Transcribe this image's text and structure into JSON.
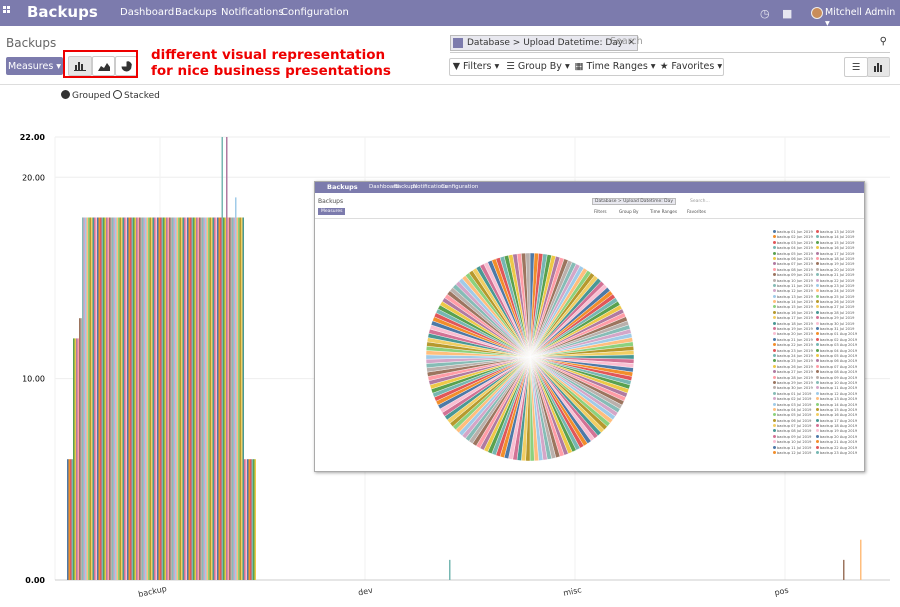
{
  "app": {
    "name": "Backups",
    "menu": [
      "Dashboard",
      "Backups",
      "Notifications",
      "Configuration"
    ],
    "user": "Mitchell Admin"
  },
  "control_panel": {
    "breadcrumb": "Backups",
    "measures_label": "Measures",
    "chart_types": [
      "bar-chart-icon",
      "area-chart-icon",
      "pie-chart-icon"
    ],
    "search": {
      "facet": "Database > Upload Datetime: Day",
      "placeholder": "Search"
    },
    "filters": [
      "Filters",
      "Group By",
      "Time Ranges",
      "Favorites"
    ],
    "views": [
      "list-view-icon",
      "graph-view-icon"
    ]
  },
  "annotation": {
    "line1": "different visual representation",
    "line2": "for nice business presentations",
    "color": "#e00000"
  },
  "graph_mode": {
    "grouped_label": "Grouped",
    "stacked_label": "Stacked",
    "selected": "Grouped"
  },
  "chart_data": {
    "type": "bar",
    "categories": [
      "backup",
      "dev",
      "misc",
      "pos"
    ],
    "ylim": [
      0,
      22
    ],
    "yticks": [
      "0.00",
      "10.00",
      "20.00",
      "22.00"
    ],
    "grid": true,
    "series_note": "many daily series per category",
    "approx_values": {
      "backup": {
        "outer_low": 6,
        "mid": 12,
        "plateau": 18,
        "peak": 22,
        "spike": 19
      },
      "dev": {
        "max": 0
      },
      "misc": {
        "max": 1
      },
      "pos": {
        "max": 2
      }
    }
  },
  "inset": {
    "title": "Backups",
    "menu": [
      "Dashboard",
      "Backups",
      "Notifications",
      "Configuration"
    ],
    "breadcrumb": "Backups",
    "measures_label": "Measures",
    "facet": "Database > Upload Datetime: Day",
    "placeholder": "Search...",
    "filters": [
      "Filters",
      "Group By",
      "Time Ranges",
      "Favorites"
    ],
    "chart_type": "pie",
    "legend": [
      "backup 01 Jun 2019",
      "backup 02 Jun 2019",
      "backup 03 Jun 2019",
      "backup 04 Jun 2019",
      "backup 05 Jun 2019",
      "backup 06 Jun 2019",
      "backup 07 Jun 2019",
      "backup 08 Jun 2019",
      "backup 09 Jun 2019",
      "backup 10 Jun 2019",
      "backup 11 Jun 2019",
      "backup 12 Jun 2019",
      "backup 13 Jun 2019",
      "backup 14 Jun 2019",
      "backup 15 Jun 2019",
      "backup 16 Jun 2019",
      "backup 17 Jun 2019",
      "backup 18 Jun 2019",
      "backup 19 Jun 2019",
      "backup 20 Jun 2019",
      "backup 21 Jun 2019",
      "backup 22 Jun 2019",
      "backup 23 Jun 2019",
      "backup 24 Jun 2019",
      "backup 25 Jun 2019",
      "backup 26 Jun 2019",
      "backup 27 Jun 2019",
      "backup 28 Jun 2019",
      "backup 29 Jun 2019",
      "backup 30 Jun 2019",
      "backup 01 Jul 2019",
      "backup 02 Jul 2019",
      "backup 03 Jul 2019",
      "backup 04 Jul 2019",
      "backup 05 Jul 2019",
      "backup 06 Jul 2019",
      "backup 07 Jul 2019",
      "backup 08 Jul 2019",
      "backup 09 Jul 2019",
      "backup 10 Jul 2019",
      "backup 11 Jul 2019",
      "backup 12 Jul 2019",
      "backup 13 Jul 2019",
      "backup 14 Jul 2019",
      "backup 15 Jul 2019",
      "backup 16 Jul 2019",
      "backup 17 Jul 2019",
      "backup 18 Jul 2019",
      "backup 19 Jul 2019",
      "backup 20 Jul 2019",
      "backup 21 Jul 2019",
      "backup 22 Jul 2019",
      "backup 23 Jul 2019",
      "backup 24 Jul 2019",
      "backup 25 Jul 2019",
      "backup 26 Jul 2019",
      "backup 27 Jul 2019",
      "backup 28 Jul 2019",
      "backup 29 Jul 2019",
      "backup 30 Jul 2019",
      "backup 31 Jul 2019",
      "backup 01 Aug 2019",
      "backup 02 Aug 2019",
      "backup 03 Aug 2019",
      "backup 04 Aug 2019",
      "backup 05 Aug 2019",
      "backup 06 Aug 2019",
      "backup 07 Aug 2019",
      "backup 08 Aug 2019",
      "backup 09 Aug 2019",
      "backup 10 Aug 2019",
      "backup 11 Aug 2019",
      "backup 12 Aug 2019",
      "backup 13 Aug 2019",
      "backup 14 Aug 2019",
      "backup 15 Aug 2019",
      "backup 16 Aug 2019",
      "backup 17 Aug 2019",
      "backup 18 Aug 2019",
      "backup 19 Aug 2019",
      "backup 20 Aug 2019",
      "backup 21 Aug 2019",
      "backup 22 Aug 2019",
      "backup 23 Aug 2019"
    ]
  },
  "palette": [
    "#4e79a7",
    "#f28e2b",
    "#e15759",
    "#76b7b2",
    "#59a14f",
    "#edc948",
    "#b07aa1",
    "#ff9da7",
    "#9c755f",
    "#bab0ac",
    "#86bcb6",
    "#d4a6c8",
    "#a0cbe8",
    "#ffbe7d",
    "#8cd17d",
    "#b6992d",
    "#f1ce63",
    "#499894",
    "#d37295",
    "#fabfd2"
  ]
}
